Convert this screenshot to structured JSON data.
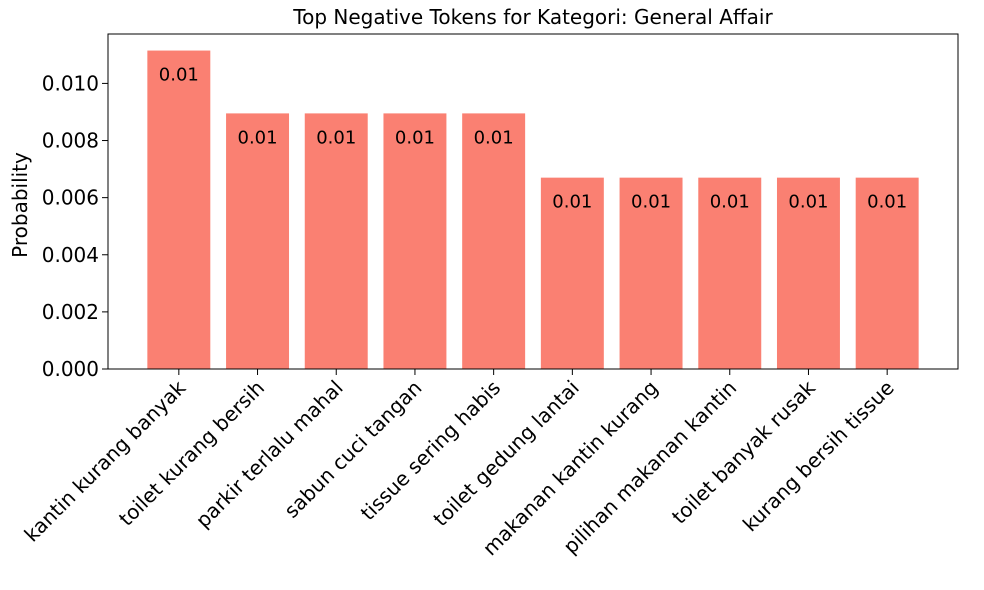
{
  "chart_data": {
    "type": "bar",
    "title": "Top Negative Tokens for Kategori: General Affair",
    "xlabel": "",
    "ylabel": "Probability",
    "categories": [
      "kantin kurang banyak",
      "toilet kurang bersih",
      "parkir terlalu mahal",
      "sabun cuci tangan",
      "tissue sering habis",
      "toilet gedung lantai",
      "makanan kantin kurang",
      "pilihan makanan kantin",
      "toilet banyak rusak",
      "kurang bersih tissue"
    ],
    "values": [
      0.01115,
      0.00895,
      0.00895,
      0.00895,
      0.00895,
      0.0067,
      0.0067,
      0.0067,
      0.0067,
      0.0067
    ],
    "data_labels": [
      "0.01",
      "0.01",
      "0.01",
      "0.01",
      "0.01",
      "0.01",
      "0.01",
      "0.01",
      "0.01",
      "0.01"
    ],
    "ylim": [
      0,
      0.01173
    ],
    "yticks": [
      "0.000",
      "0.002",
      "0.004",
      "0.006",
      "0.008",
      "0.010"
    ],
    "ytick_values": [
      0,
      0.002,
      0.004,
      0.006,
      0.008,
      0.01
    ],
    "grid": false,
    "bar_color": "#fa8072"
  }
}
